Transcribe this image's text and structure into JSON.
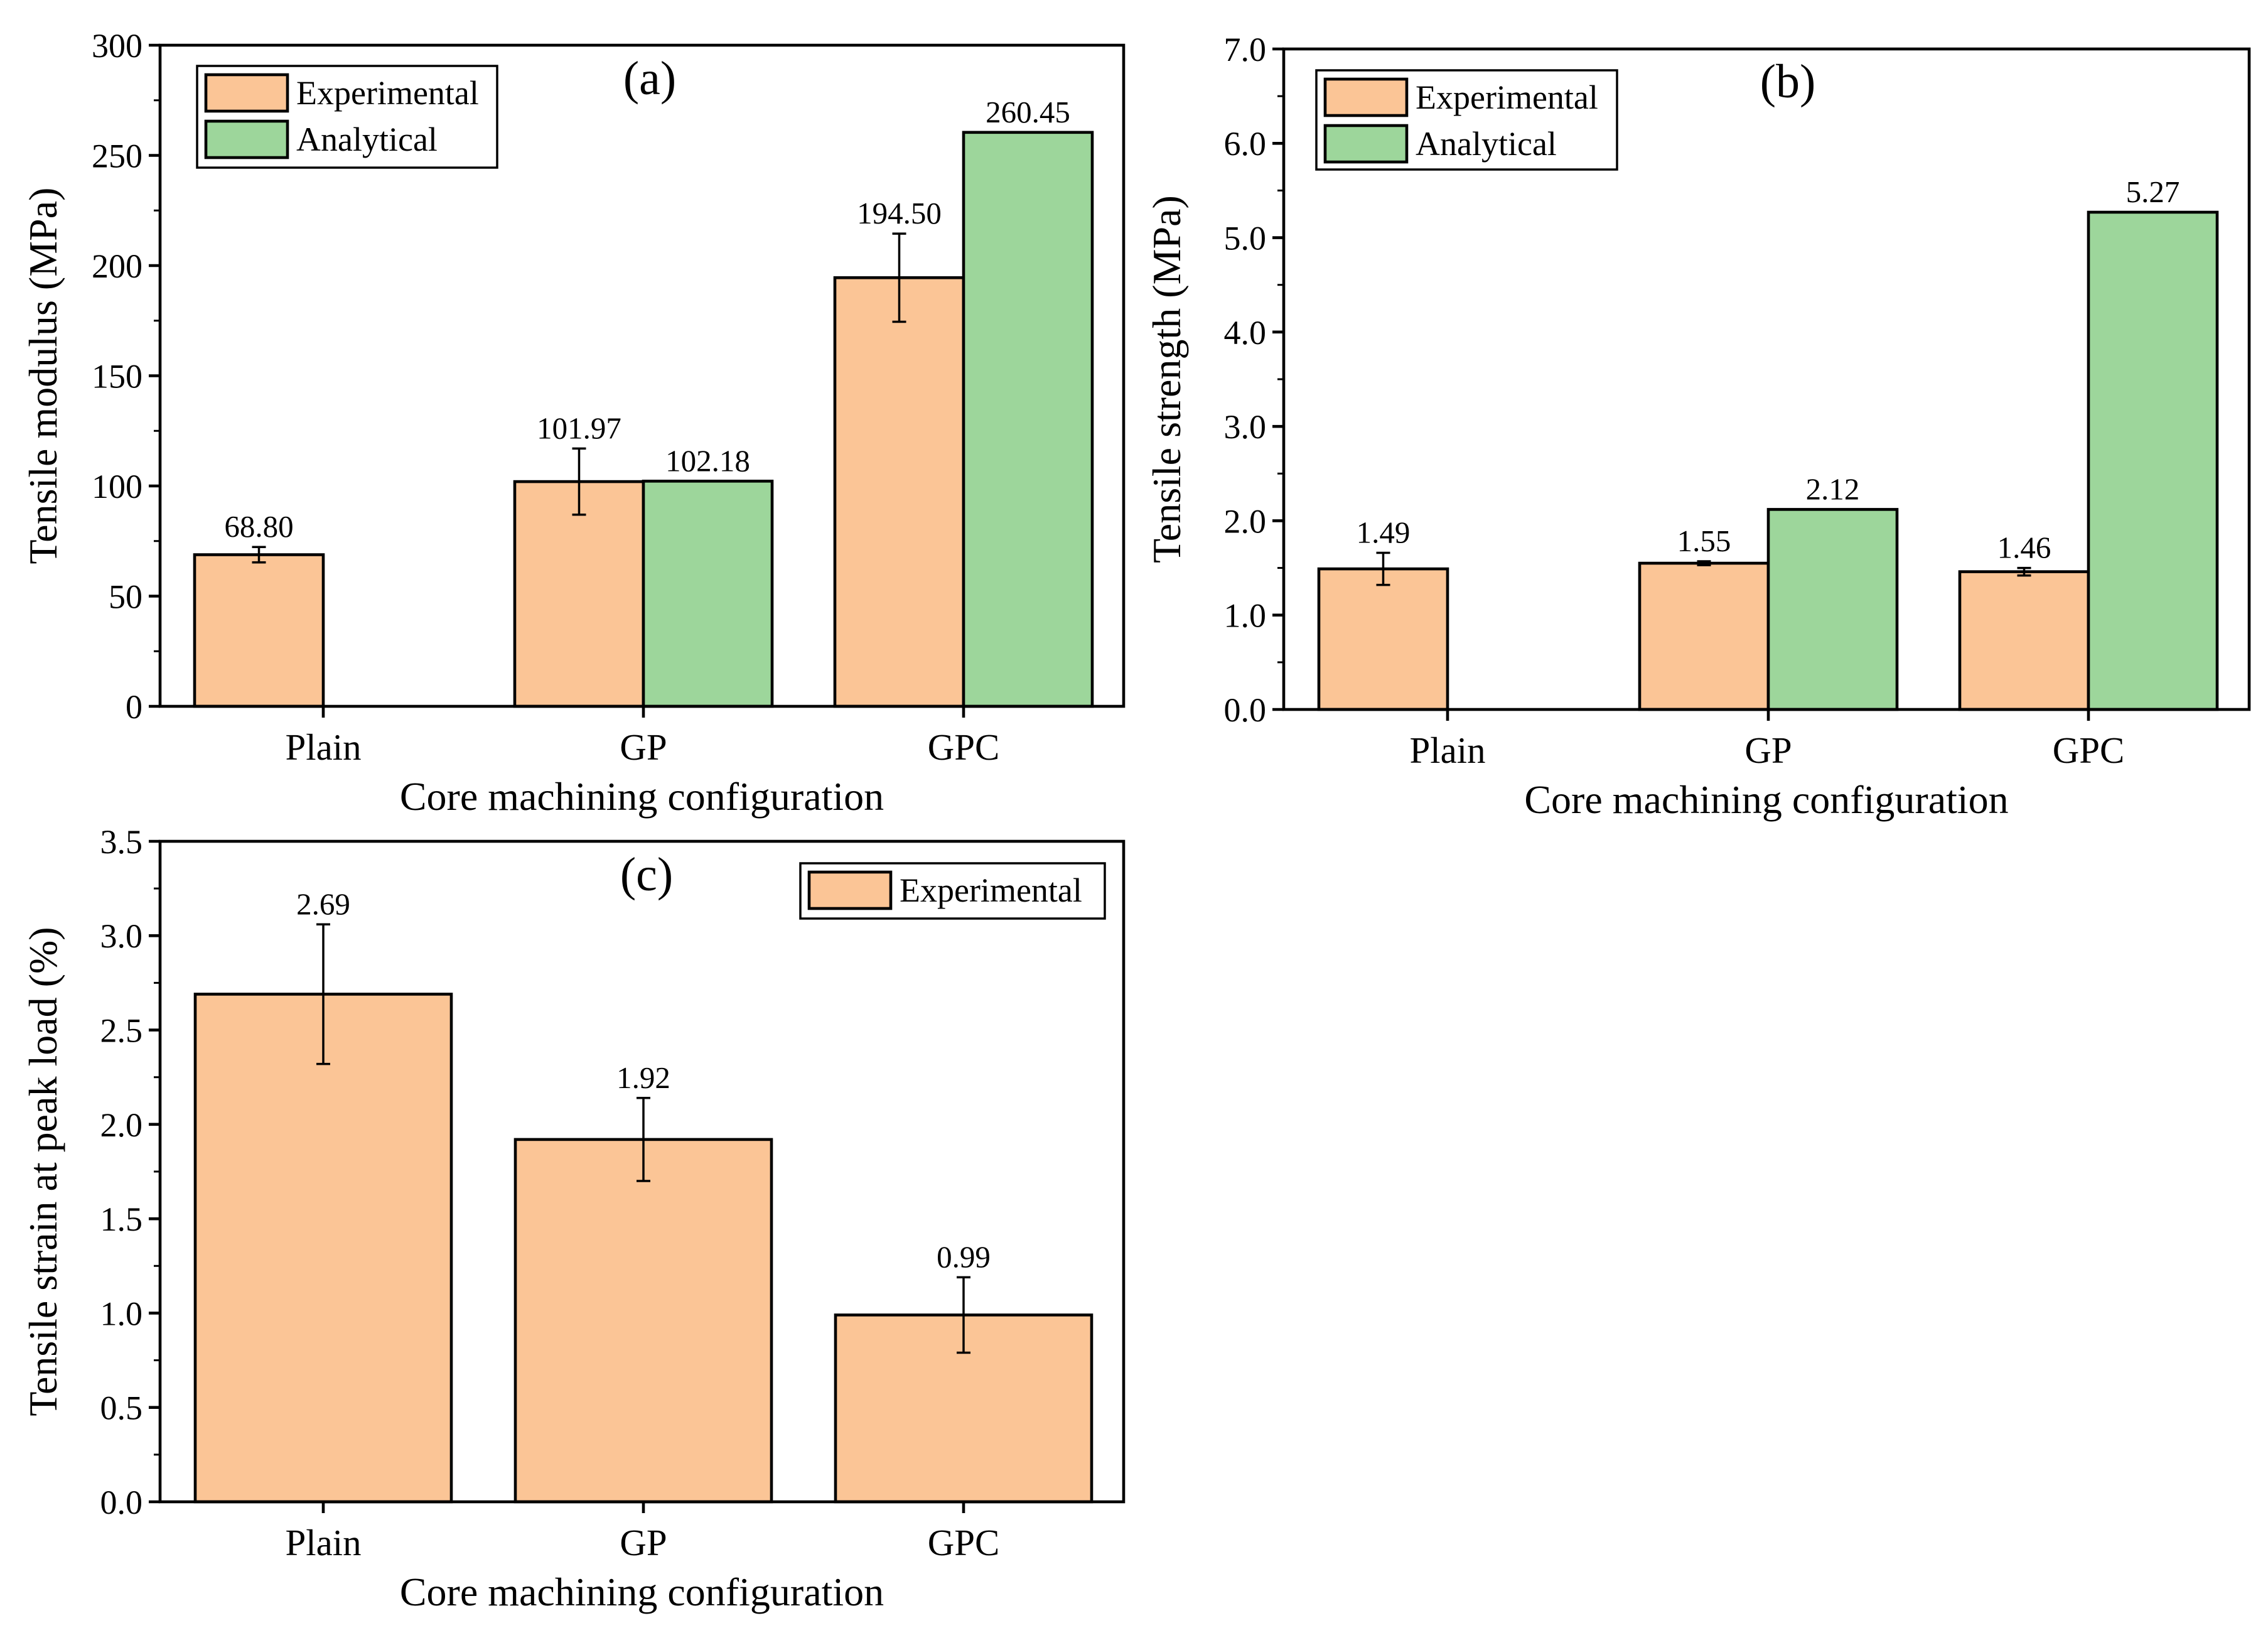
{
  "colors": {
    "experimental": "#fbc596",
    "analytical": "#9dd69b",
    "axis": "#000000"
  },
  "chart_data": [
    {
      "id": "a",
      "type": "bar",
      "panel_label": "(a)",
      "xlabel": "Core machining configuration",
      "ylabel": "Tensile modulus (MPa)",
      "ylim": [
        0,
        300
      ],
      "yticks": [
        0,
        50,
        100,
        150,
        200,
        250,
        300
      ],
      "ytick_labels": [
        "0",
        "50",
        "100",
        "150",
        "200",
        "250",
        "300"
      ],
      "categories": [
        "Plain",
        "GP",
        "GPC"
      ],
      "legend": [
        "Experimental",
        "Analytical"
      ],
      "legend_position": "top-left",
      "series": [
        {
          "name": "Experimental",
          "values": [
            68.8,
            101.97,
            194.5
          ],
          "errors": [
            3.5,
            15,
            20
          ],
          "labels": [
            "68.80",
            "101.97",
            "194.50"
          ]
        },
        {
          "name": "Analytical",
          "values": [
            null,
            102.18,
            260.45
          ],
          "errors": [
            null,
            null,
            null
          ],
          "labels": [
            "",
            "102.18",
            "260.45"
          ]
        }
      ]
    },
    {
      "id": "b",
      "type": "bar",
      "panel_label": "(b)",
      "xlabel": "Core machining configuration",
      "ylabel": "Tensile strength (MPa)",
      "ylim": [
        0,
        7
      ],
      "yticks": [
        0,
        1,
        2,
        3,
        4,
        5,
        6,
        7
      ],
      "ytick_labels": [
        "0.0",
        "1.0",
        "2.0",
        "3.0",
        "4.0",
        "5.0",
        "6.0",
        "7.0"
      ],
      "categories": [
        "Plain",
        "GP",
        "GPC"
      ],
      "legend": [
        "Experimental",
        "Analytical"
      ],
      "legend_position": "top-left",
      "series": [
        {
          "name": "Experimental",
          "values": [
            1.49,
            1.55,
            1.46
          ],
          "errors": [
            0.17,
            0.02,
            0.04
          ],
          "labels": [
            "1.49",
            "1.55",
            "1.46"
          ]
        },
        {
          "name": "Analytical",
          "values": [
            null,
            2.12,
            5.27
          ],
          "errors": [
            null,
            null,
            null
          ],
          "labels": [
            "",
            "2.12",
            "5.27"
          ]
        }
      ]
    },
    {
      "id": "c",
      "type": "bar",
      "panel_label": "(c)",
      "xlabel": "Core machining configuration",
      "ylabel": "Tensile strain at peak load (%)",
      "ylim": [
        0,
        3.5
      ],
      "yticks": [
        0,
        0.5,
        1,
        1.5,
        2,
        2.5,
        3,
        3.5
      ],
      "ytick_labels": [
        "0.0",
        "0.5",
        "1.0",
        "1.5",
        "2.0",
        "2.5",
        "3.0",
        "3.5"
      ],
      "categories": [
        "Plain",
        "GP",
        "GPC"
      ],
      "legend": [
        "Experimental"
      ],
      "legend_position": "top-right",
      "series": [
        {
          "name": "Experimental",
          "values": [
            2.69,
            1.92,
            0.99
          ],
          "errors": [
            0.37,
            0.22,
            0.2
          ],
          "labels": [
            "2.69",
            "1.92",
            "0.99"
          ]
        }
      ]
    }
  ]
}
